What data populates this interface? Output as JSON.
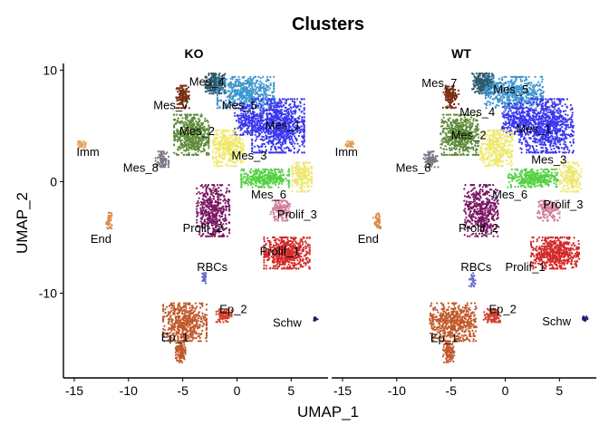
{
  "chart_data": {
    "type": "scatter",
    "title": "Clusters",
    "xlabel": "UMAP_1",
    "ylabel": "UMAP_2",
    "xlim": [
      -16,
      8.4
    ],
    "ylim": [
      -17.6,
      10.6
    ],
    "xticks": [
      -15,
      -10,
      -5,
      0,
      5
    ],
    "yticks": [
      10,
      0,
      -10
    ],
    "grid": false,
    "panels": [
      {
        "name": "KO"
      },
      {
        "name": "WT"
      }
    ],
    "clusters": [
      {
        "label": "Mes_4",
        "color": "#2e5a6e",
        "parts": [
          [
            -2.0,
            8.8,
            0.9,
            0.9,
            260
          ]
        ]
      },
      {
        "label": "Mes_7",
        "color": "#7a2f14",
        "parts": [
          [
            -5.0,
            7.6,
            0.6,
            1.0,
            140
          ]
        ]
      },
      {
        "label": "Mes_5",
        "color": "#3f97cf",
        "parts": [
          [
            0.8,
            8.0,
            2.6,
            1.4,
            520
          ]
        ]
      },
      {
        "label": "Mes_1",
        "color": "#3a37f0",
        "parts": [
          [
            3.8,
            5.0,
            2.4,
            2.4,
            900
          ],
          [
            1.0,
            5.6,
            1.2,
            1.4,
            220
          ]
        ]
      },
      {
        "label": "Mes_2",
        "color": "#5e8b3a",
        "parts": [
          [
            -4.2,
            4.2,
            1.6,
            1.8,
            560
          ]
        ]
      },
      {
        "label": "Mes_3",
        "color": "#efe86a",
        "parts": [
          [
            -0.8,
            3.0,
            1.4,
            1.6,
            360
          ]
        ]
      },
      {
        "label": "Mes_8",
        "color": "#7e7585",
        "parts": [
          [
            -6.9,
            2.0,
            0.6,
            0.7,
            90
          ]
        ]
      },
      {
        "label": "Mes_6",
        "color": "#55d144",
        "parts": [
          [
            2.6,
            0.3,
            2.2,
            0.8,
            360
          ]
        ]
      },
      {
        "label": "",
        "color": "#ede872",
        "parts": [
          [
            6.0,
            0.4,
            0.9,
            1.3,
            200
          ]
        ]
      },
      {
        "label": "Prolif_2",
        "color": "#7a1764",
        "parts": [
          [
            -2.2,
            -2.6,
            1.5,
            2.3,
            460
          ]
        ]
      },
      {
        "label": "Prolif_3",
        "color": "#d17e9b",
        "parts": [
          [
            4.0,
            -2.6,
            0.9,
            0.9,
            150
          ]
        ]
      },
      {
        "label": "Prolif_1",
        "color": "#d42a2a",
        "parts": [
          [
            4.6,
            -6.4,
            2.1,
            1.4,
            580
          ]
        ]
      },
      {
        "label": "RBCs",
        "color": "#6b6bcf",
        "parts": [
          [
            -3.0,
            -8.8,
            0.2,
            0.6,
            30
          ]
        ]
      },
      {
        "label": "Ep_2",
        "color": "#d0432e",
        "parts": [
          [
            -1.2,
            -12.0,
            0.7,
            0.6,
            110
          ]
        ]
      },
      {
        "label": "Ep_1",
        "color": "#c1592b",
        "parts": [
          [
            -4.8,
            -12.6,
            2.0,
            1.7,
            560
          ],
          [
            -5.2,
            -15.3,
            0.45,
            0.9,
            110
          ]
        ]
      },
      {
        "label": "Schw",
        "color": "#1c1c70",
        "parts": [
          [
            7.3,
            -12.3,
            0.2,
            0.2,
            20
          ]
        ]
      },
      {
        "label": "Imm",
        "color": "#e3a25c",
        "parts": [
          [
            -14.3,
            3.3,
            0.35,
            0.3,
            45
          ]
        ]
      },
      {
        "label": "End",
        "color": "#db8e4e",
        "parts": [
          [
            -11.8,
            -3.5,
            0.25,
            0.7,
            50
          ]
        ]
      }
    ],
    "labels": {
      "KO": [
        [
          "Mes_4",
          -4.4,
          8.6
        ],
        [
          "Mes_7",
          -7.7,
          6.5
        ],
        [
          "Mes_5",
          -1.4,
          6.5
        ],
        [
          "Mes_2",
          -5.3,
          4.2
        ],
        [
          "Mes_1",
          2.6,
          4.7
        ],
        [
          "Mes_3",
          -0.5,
          2.0
        ],
        [
          "Imm",
          -14.8,
          2.3
        ],
        [
          "Mes_8",
          -10.5,
          0.9
        ],
        [
          "Mes_6",
          1.3,
          -1.5
        ],
        [
          "Prolif_3",
          3.7,
          -3.3
        ],
        [
          "Prolif_2",
          -5.0,
          -4.5
        ],
        [
          "End",
          -13.5,
          -5.5
        ],
        [
          "Prolif_1",
          2.1,
          -6.6
        ],
        [
          "RBCs",
          -3.7,
          -8.0
        ],
        [
          "Ep_2",
          -1.6,
          -11.8
        ],
        [
          "Schw",
          3.3,
          -13.0
        ],
        [
          "Ep_1",
          -7.0,
          -14.3
        ]
      ],
      "WT": [
        [
          "Mes_7",
          -7.7,
          8.5
        ],
        [
          "Mes_5",
          -1.1,
          7.9
        ],
        [
          "Mes_4",
          -4.2,
          5.9
        ],
        [
          "Mes_1",
          1.0,
          4.4
        ],
        [
          "Mes_2",
          -5.0,
          3.8
        ],
        [
          "Imm",
          -15.7,
          2.3
        ],
        [
          "Mes_3",
          2.4,
          1.6
        ],
        [
          "Mes_8",
          -10.1,
          0.9
        ],
        [
          "Mes_6",
          -1.2,
          -1.5
        ],
        [
          "Prolif_3",
          3.5,
          -2.4
        ],
        [
          "Prolif_2",
          -4.3,
          -4.5
        ],
        [
          "End",
          -13.6,
          -5.5
        ],
        [
          "Prolif_1",
          0.0,
          -8.0
        ],
        [
          "RBCs",
          -4.1,
          -8.0
        ],
        [
          "Ep_2",
          -1.5,
          -11.8
        ],
        [
          "Schw",
          3.4,
          -12.9
        ],
        [
          "Ep_1",
          -6.9,
          -14.4
        ]
      ]
    }
  }
}
